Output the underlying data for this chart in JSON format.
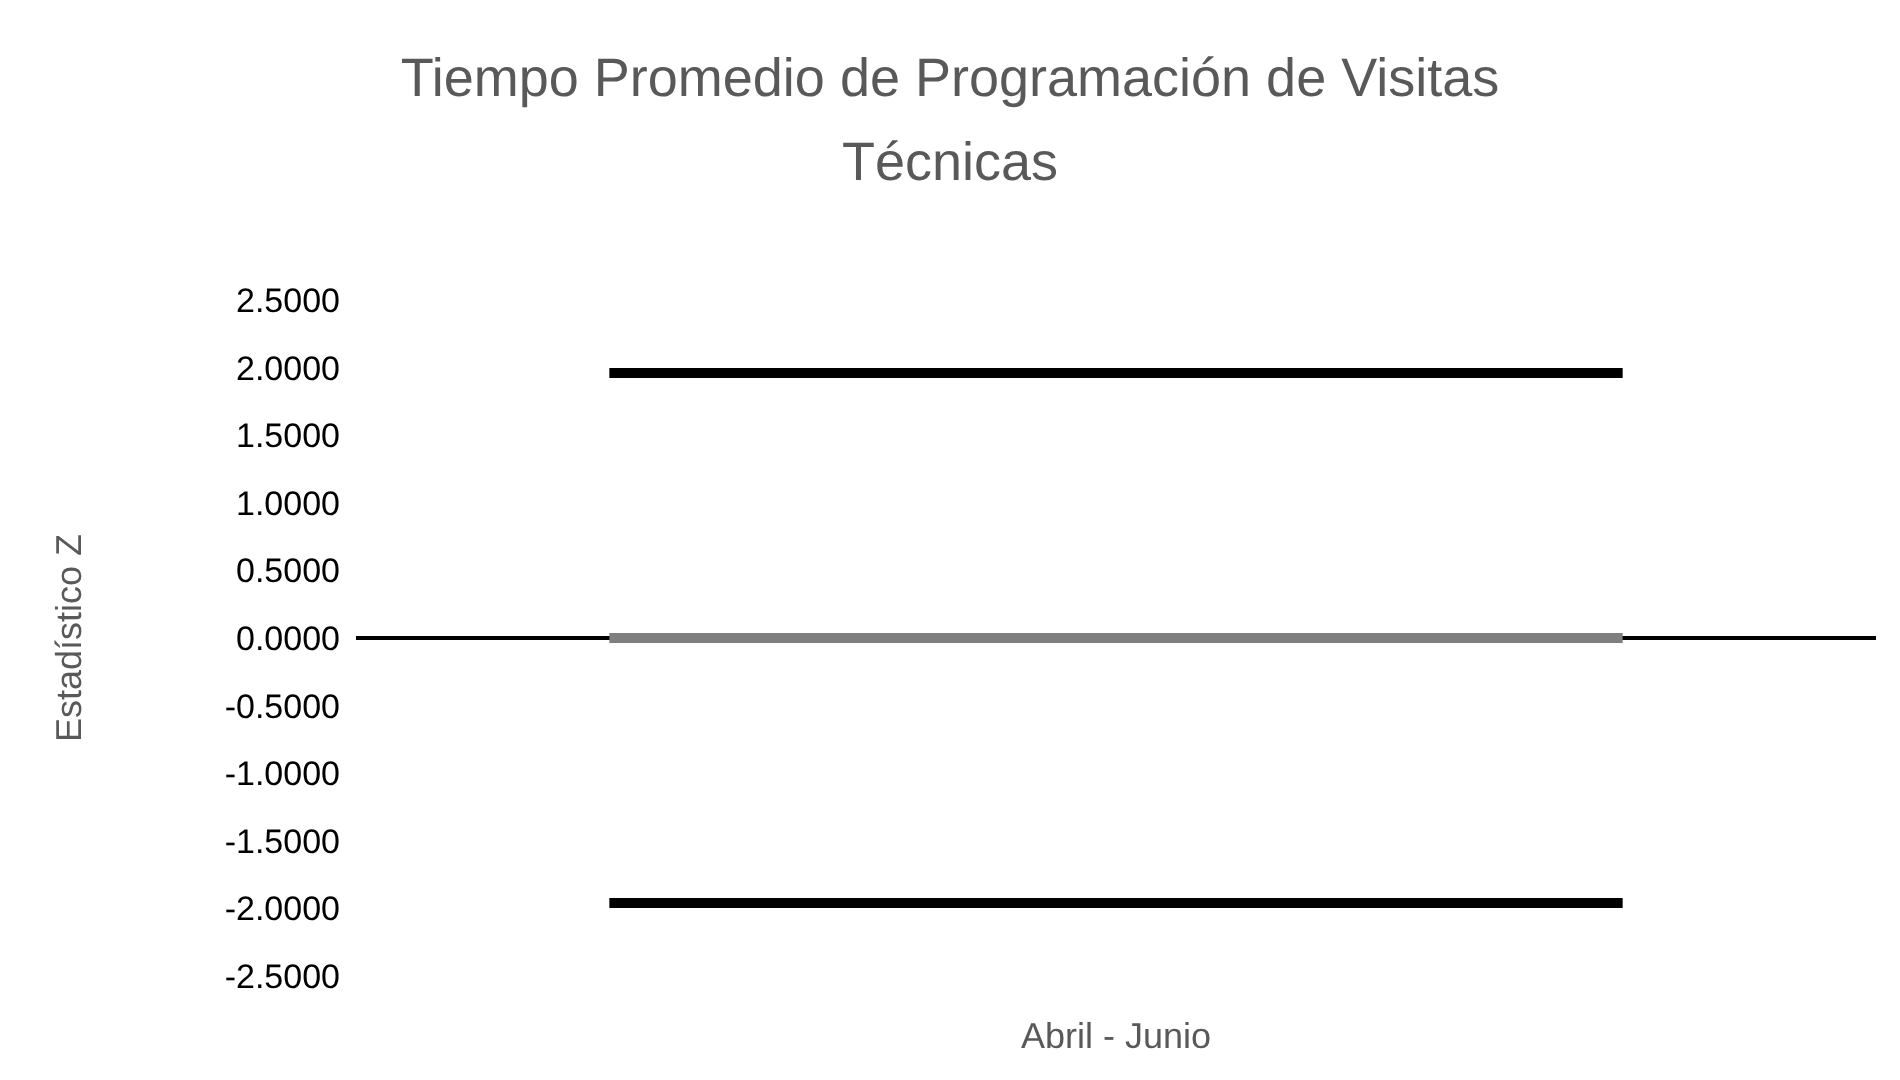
{
  "chart_data": {
    "type": "line",
    "title": "Tiempo Promedio de Programación de Visitas Técnicas",
    "xlabel": "Abril - Junio",
    "ylabel": "Estadístico Z",
    "categories": [
      null,
      null,
      null
    ],
    "series": [
      {
        "color": "#000000",
        "values": [
          1.96,
          1.96,
          1.96
        ]
      },
      {
        "color": "#7f7f7f",
        "values": [
          0,
          0,
          0
        ]
      },
      {
        "color": "#000000",
        "values": [
          -1.96,
          -1.96,
          -1.96
        ]
      }
    ],
    "ylim": [
      -2.5,
      2.5
    ],
    "yticks": [
      {
        "value": 2.5,
        "label": "2.5000"
      },
      {
        "value": 2,
        "label": "2.0000"
      },
      {
        "value": 1.5,
        "label": "1.5000"
      },
      {
        "value": 1,
        "label": "1.0000"
      },
      {
        "value": 0.5,
        "label": "0.5000"
      },
      {
        "value": 0,
        "label": "0.0000"
      },
      {
        "value": -0.5,
        "label": "-0.5000"
      },
      {
        "value": -1,
        "label": "-1.0000"
      },
      {
        "value": -1.5,
        "label": "-1.5000"
      },
      {
        "value": -2,
        "label": "-2.0000"
      },
      {
        "value": -2.5,
        "label": "-2.5000"
      }
    ],
    "ref_lines": [
      {
        "axis": "y",
        "value": 0,
        "color": "#000000"
      }
    ],
    "grid": false,
    "legend": false,
    "marker": "none",
    "line_style": "solid"
  }
}
